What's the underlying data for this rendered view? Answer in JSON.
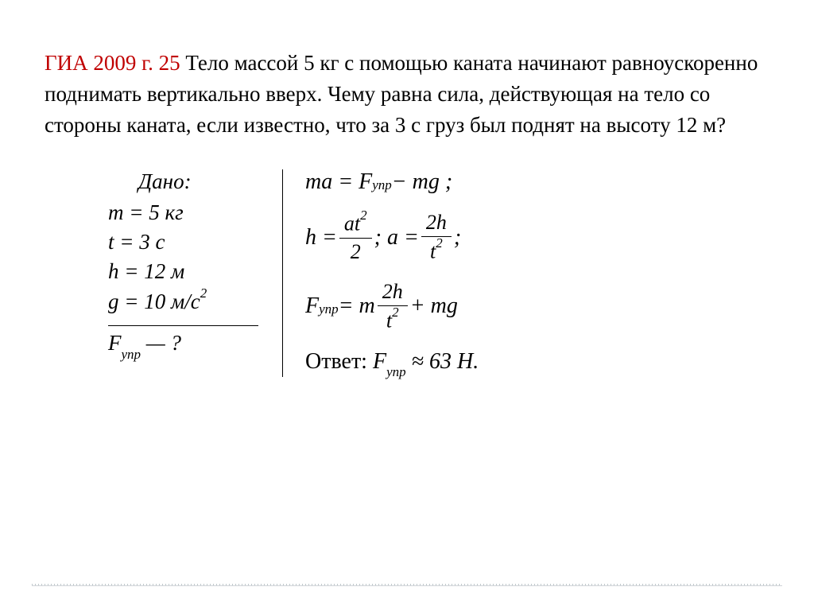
{
  "colors": {
    "title": "#c00000",
    "text": "#000000",
    "background": "#ffffff",
    "divider": "#c0c8cc"
  },
  "typography": {
    "body_fontsize": 27,
    "math_fontsize": 28,
    "family": "Georgia / Times New Roman"
  },
  "problem": {
    "title": "ГИА 2009 г. 25",
    "text": " Тело массой 5 кг с помощью каната начинают равноускоренно поднимать вертикально вверх. Чему равна сила, действующая на тело со стороны каната, если известно, что за 3 с груз был поднят на высоту 12 м?"
  },
  "given": {
    "label": "Дано:",
    "lines": {
      "m": "m = 5 кг",
      "t": "t = 3 с",
      "h": "h = 12 м",
      "g": "g = 10 м/с"
    },
    "g_exp": "2",
    "unknown_var": "F",
    "unknown_sub": "упр",
    "unknown_tail": " — ?"
  },
  "solution": {
    "eq1_lhs": "ma = F",
    "eq1_sub": "упр",
    "eq1_rhs": " − mg ;",
    "eq2_h": "h = ",
    "eq2_frac1_num": "at",
    "eq2_frac1_num_exp": "2",
    "eq2_frac1_den": "2",
    "eq2_mid": " ; a = ",
    "eq2_frac2_num": "2h",
    "eq2_frac2_den": "t",
    "eq2_frac2_den_exp": "2",
    "eq2_tail": " ;",
    "eq3_lhs": "F",
    "eq3_sub": "упр",
    "eq3_eq": " = m",
    "eq3_frac_num": "2h",
    "eq3_frac_den": "t",
    "eq3_frac_den_exp": "2",
    "eq3_rhs": " + mg",
    "answer_label": "Ответ: ",
    "answer_var": "F",
    "answer_sub": "упр",
    "answer_val": " ≈ 63 Н."
  }
}
